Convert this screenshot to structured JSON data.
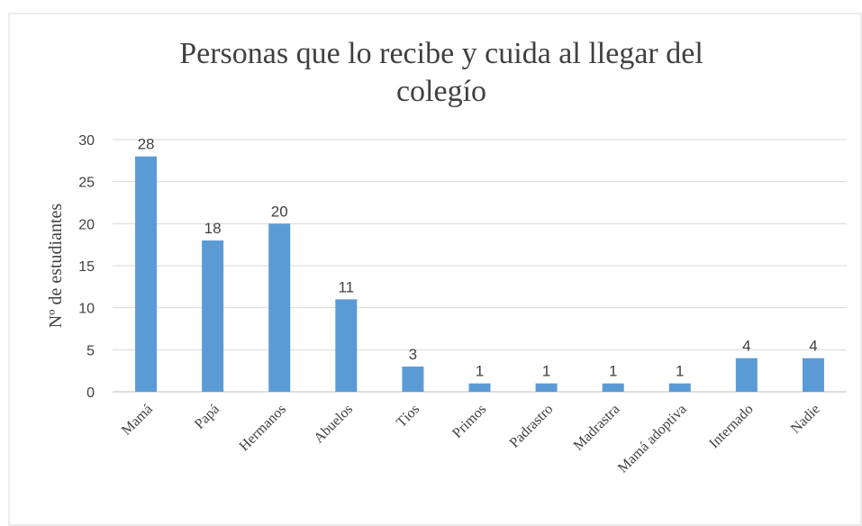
{
  "chart_data": {
    "type": "bar",
    "title": "Personas que lo recibe y cuida al llegar  del colegío",
    "y_label": "Nº de estudiantes",
    "categories": [
      "Mamá",
      "Papá",
      "Hermanos",
      "Abuelos",
      "Tíos",
      "Primos",
      "Padrastro",
      "Madrastra",
      "Mamá adoptiva",
      "Internado",
      "Nadie"
    ],
    "values": [
      28,
      18,
      20,
      11,
      3,
      1,
      1,
      1,
      1,
      4,
      4
    ],
    "color": "#5b9bd5",
    "ylim": [
      0,
      30
    ],
    "yticks": [
      0,
      5,
      10,
      15,
      20,
      25,
      30
    ],
    "grid": true
  }
}
